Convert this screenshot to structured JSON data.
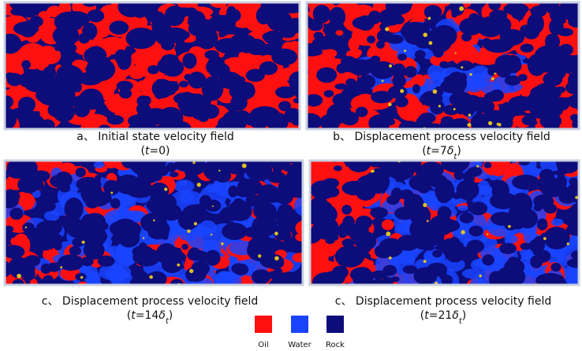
{
  "panels": [
    {
      "caption": "a、 Initial state velocity field",
      "time": [
        {
          "text": "(",
          "style": "normal"
        },
        {
          "text": "t",
          "style": "italic"
        },
        {
          "text": "=0)",
          "style": "normal"
        }
      ]
    },
    {
      "caption": "b、 Displacement process velocity field",
      "time": [
        {
          "text": "(",
          "style": "normal"
        },
        {
          "text": "t",
          "style": "italic"
        },
        {
          "text": "=7",
          "style": "normal"
        },
        {
          "text": "δ",
          "style": "italic"
        },
        {
          "text": "t",
          "style": "sub"
        },
        {
          "text": ")",
          "style": "normal"
        }
      ]
    },
    {
      "caption": "c、 Displacement process velocity field",
      "time": [
        {
          "text": "(",
          "style": "normal"
        },
        {
          "text": "t",
          "style": "italic"
        },
        {
          "text": "=14",
          "style": "normal"
        },
        {
          "text": "δ",
          "style": "italic"
        },
        {
          "text": "t",
          "style": "sub"
        },
        {
          "text": ")",
          "style": "normal"
        }
      ]
    },
    {
      "caption": "c、 Displacement process velocity field",
      "time": [
        {
          "text": "(",
          "style": "normal"
        },
        {
          "text": "t",
          "style": "italic"
        },
        {
          "text": "=21",
          "style": "normal"
        },
        {
          "text": "δ",
          "style": "italic"
        },
        {
          "text": "t",
          "style": "sub"
        },
        {
          "text": ")",
          "style": "normal"
        }
      ]
    }
  ],
  "legend": [
    {
      "label": "Oil",
      "color": "#ff1010"
    },
    {
      "label": "Water",
      "color": "#1a44ff"
    },
    {
      "label": "Rock",
      "color": "#0c0c7a"
    }
  ]
}
